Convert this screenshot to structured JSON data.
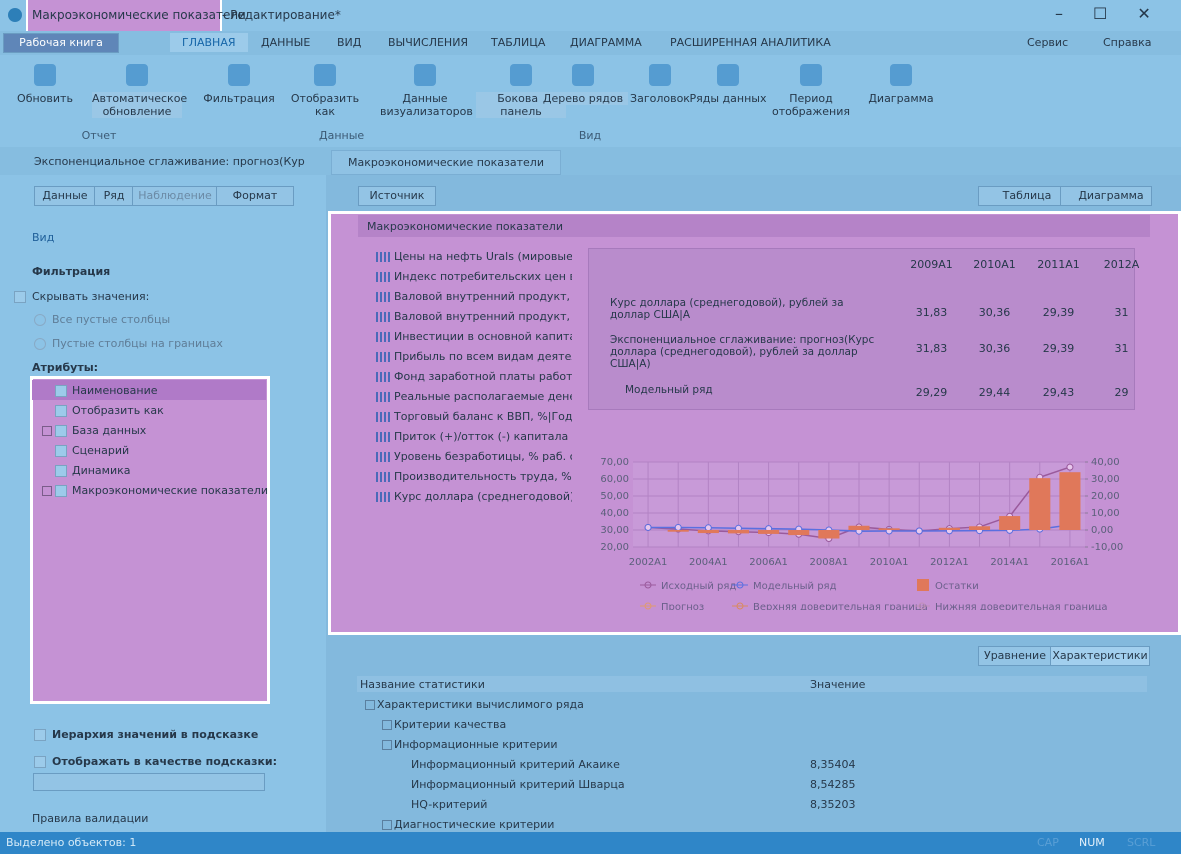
{
  "window": {
    "title": "Макроэкономические показатели",
    "title_suffix": " - Редактирование*"
  },
  "menu": {
    "workbook": "Рабочая книга",
    "tabs": [
      "ГЛАВНАЯ",
      "ДАННЫЕ",
      "ВИД",
      "ВЫЧИСЛЕНИЯ",
      "ТАБЛИЦА",
      "ДИАГРАММА",
      "РАСШИРЕННАЯ АНАЛИТИКА"
    ],
    "right": [
      "Сервис",
      "Справка"
    ]
  },
  "ribbon": {
    "buttons": [
      "Обновить",
      "Автоматическое обновление",
      "Фильтрация",
      "Отобразить как",
      "Данные визуализаторов",
      "Боковая панель",
      "Дерево рядов",
      "Заголовок",
      "Ряды данных",
      "Период отображения",
      "Диаграмма"
    ],
    "groups": [
      "Отчет",
      "Данные",
      "Вид"
    ]
  },
  "doc_tabs": [
    "Экспоненциальное сглаживание: прогноз(Кур",
    "Макроэкономические показатели"
  ],
  "left_panel": {
    "tabs": [
      "Данные",
      "Ряд",
      "Наблюдение",
      "Формат"
    ],
    "section": "Вид",
    "filter_title": "Фильтрация",
    "hide_values": "Скрывать значения:",
    "radios": [
      "Все пустые столбцы",
      "Пустые столбцы на границах"
    ],
    "attributes_title": "Атрибуты:",
    "attributes": [
      "Наименование",
      "Отобразить как",
      "База данных",
      "Сценарий",
      "Динамика",
      "Макроэкономические показатели"
    ],
    "hierarchy": "Иерархия значений в подсказке",
    "tooltip": "Отображать в качестве подсказки:",
    "validation": "Правила валидации"
  },
  "toolbar": {
    "source": "Источник",
    "table": "Таблица",
    "chart": "Диаграмма"
  },
  "report": {
    "header": "Макроэкономические показатели",
    "series_list": [
      "Цены на нефть Urals (мировые), д",
      "Индекс  потребительских цен в с",
      "Валовой внутренний продукт, Те",
      "Валовой внутренний продукт, Ин",
      "Инвестиции в основной капитал",
      "Прибыль по всем видам деятель",
      "Фонд заработной платы работни",
      "Реальные располагаемые денеж",
      "Торговый баланс к ВВП, %|Годов",
      "Приток (+)/отток (-) капитала к В",
      "Уровень безработицы, % раб. си",
      "Производительность труда, %|Го",
      "Курс доллара (среднегодовой), ру"
    ],
    "table": {
      "columns": [
        "2009A1",
        "2010A1",
        "2011A1",
        "2012А"
      ],
      "rows": [
        {
          "label": "Курс доллара (среднегодовой), рублей за доллар США|A",
          "cells": [
            "31,83",
            "30,36",
            "29,39",
            "31"
          ]
        },
        {
          "label": "Экспоненциальное сглаживание: прогноз(Курс доллара (среднегодовой), рублей за доллар США|A)",
          "cells": [
            "31,83",
            "30,36",
            "29,39",
            "31"
          ]
        },
        {
          "label": "Модельный ряд",
          "cells": [
            "29,29",
            "29,44",
            "29,43",
            "29"
          ]
        }
      ]
    },
    "chart": {
      "type": "line",
      "categories": [
        "2002A1",
        null,
        "2004A1",
        null,
        "2006A1",
        null,
        "2008A1",
        null,
        "2010A1",
        null,
        "2012A1",
        null,
        "2014A1",
        null,
        "2016A1"
      ],
      "ylim": [
        20,
        70
      ],
      "yticks": [
        {
          "value": 20,
          "label": "20,00"
        },
        {
          "value": 30,
          "label": "30,00"
        },
        {
          "value": 40,
          "label": "40,00"
        },
        {
          "value": 50,
          "label": "50,00"
        },
        {
          "value": 60,
          "label": "60,00"
        },
        {
          "value": 70,
          "label": "70,00"
        }
      ],
      "y2lim": [
        -10,
        40
      ],
      "y2ticks": [
        {
          "value": -10,
          "label": "-10,00"
        },
        {
          "value": 0,
          "label": "0,00"
        },
        {
          "value": 10,
          "label": "10,00"
        },
        {
          "value": 20,
          "label": "20,00"
        },
        {
          "value": 30,
          "label": "30,00"
        },
        {
          "value": 40,
          "label": "40,00"
        }
      ],
      "series": [
        {
          "name": "Исходный ряд",
          "color": "#9a5a9c",
          "kind": "line",
          "values": [
            31.5,
            30.5,
            29.5,
            29,
            28.5,
            27.5,
            25,
            31.8,
            30.4,
            29.4,
            30.8,
            31.8,
            38,
            61,
            67
          ]
        },
        {
          "name": "Модельный ряд",
          "color": "#5a6fe0",
          "kind": "line",
          "values": [
            31.5,
            31.5,
            31.3,
            31,
            30.8,
            30.5,
            30,
            29.3,
            29.4,
            29.4,
            29.5,
            29.6,
            29.8,
            30.5,
            33
          ]
        },
        {
          "name": "Остатки",
          "color": "#e0785a",
          "kind": "bar",
          "axis": "y2",
          "values": [
            0,
            -1,
            -1.8,
            -2,
            -2.3,
            -3,
            -5,
            2.5,
            1,
            0,
            1.3,
            2.2,
            8.2,
            30.5,
            34
          ]
        },
        {
          "name": "Прогноз",
          "color": "#e09a70",
          "kind": "line",
          "values": [
            null,
            null,
            null,
            null,
            null,
            null,
            null,
            null,
            null,
            null,
            null,
            null,
            null,
            null,
            null
          ]
        },
        {
          "name": "Верхняя доверительная граница",
          "color": "#d98a60",
          "kind": "line",
          "values": [
            null,
            null,
            null,
            null,
            null,
            null,
            null,
            null,
            null,
            null,
            null,
            null,
            null,
            null,
            null
          ]
        },
        {
          "name": "Нижняя доверительная граница",
          "color": "#c090b8",
          "kind": "line",
          "values": [
            null,
            null,
            null,
            null,
            null,
            null,
            null,
            null,
            null,
            null,
            null,
            null,
            null,
            null,
            null
          ]
        }
      ]
    }
  },
  "stats": {
    "buttons": [
      "Уравнение",
      "Характеристики"
    ],
    "columns": [
      "Название статистики",
      "Значение"
    ],
    "rows": [
      {
        "label": "Характеристики вычислимого ряда",
        "level": 0
      },
      {
        "label": "Критерии качества",
        "level": 1
      },
      {
        "label": "Информационные критерии",
        "level": 1
      },
      {
        "label": "Информационный критерий Акаике",
        "value": "8,35404",
        "level": 2
      },
      {
        "label": "Информационный критерий Шварца",
        "value": "8,54285",
        "level": 2
      },
      {
        "label": "HQ-критерий",
        "value": "8,35203",
        "level": 2
      },
      {
        "label": "Диагностические критерии",
        "level": 1
      }
    ]
  },
  "status": {
    "text": "Выделено объектов: 1",
    "indicators": [
      "CAP",
      "NUM",
      "SCRL"
    ]
  }
}
